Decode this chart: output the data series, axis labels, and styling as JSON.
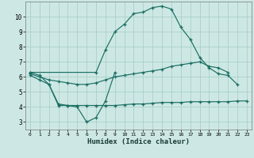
{
  "xlabel": "Humidex (Indice chaleur)",
  "line1_x": [
    0,
    1,
    2,
    3,
    4,
    5,
    6,
    7,
    8,
    9
  ],
  "line1_y": [
    6.3,
    6.1,
    5.5,
    4.1,
    4.1,
    4.0,
    3.0,
    3.3,
    4.4,
    6.3
  ],
  "line2_x": [
    0,
    7,
    8,
    9,
    10,
    11,
    12,
    13,
    14,
    15,
    16,
    17,
    18,
    19,
    20,
    21,
    22
  ],
  "line2_y": [
    6.3,
    6.3,
    7.8,
    9.0,
    9.5,
    10.2,
    10.3,
    10.6,
    10.7,
    10.5,
    9.3,
    8.5,
    7.3,
    6.6,
    6.2,
    6.1,
    5.5
  ],
  "line3_x": [
    0,
    1,
    2,
    3,
    4,
    5,
    6,
    7,
    8,
    9,
    10,
    11,
    12,
    13,
    14,
    15,
    16,
    17,
    18,
    19,
    20,
    21
  ],
  "line3_y": [
    6.2,
    6.0,
    5.8,
    5.7,
    5.6,
    5.5,
    5.5,
    5.6,
    5.8,
    6.0,
    6.1,
    6.2,
    6.3,
    6.4,
    6.5,
    6.7,
    6.8,
    6.9,
    7.0,
    6.7,
    6.6,
    6.3
  ],
  "line4_x": [
    0,
    1,
    2,
    3,
    4,
    5,
    6,
    7,
    8,
    9,
    10,
    11,
    12,
    13,
    14,
    15,
    16,
    17,
    18,
    19,
    20,
    21,
    22,
    23
  ],
  "line4_y": [
    6.1,
    5.8,
    5.5,
    4.2,
    4.1,
    4.1,
    4.1,
    4.1,
    4.1,
    4.1,
    4.15,
    4.2,
    4.2,
    4.25,
    4.3,
    4.3,
    4.3,
    4.35,
    4.35,
    4.35,
    4.35,
    4.35,
    4.4,
    4.4
  ],
  "bg_color": "#cde8e4",
  "grid_color": "#aacfcb",
  "line_color": "#1a6e62",
  "ylim": [
    2.5,
    11.0
  ],
  "xlim": [
    -0.5,
    23.5
  ],
  "yticks": [
    3,
    4,
    5,
    6,
    7,
    8,
    9,
    10
  ],
  "xtick_labels": [
    "0",
    "1",
    "2",
    "3",
    "4",
    "5",
    "6",
    "7",
    "8",
    "9",
    "10",
    "11",
    "12",
    "13",
    "14",
    "15",
    "16",
    "17",
    "18",
    "19",
    "20",
    "21",
    "22",
    "23"
  ]
}
